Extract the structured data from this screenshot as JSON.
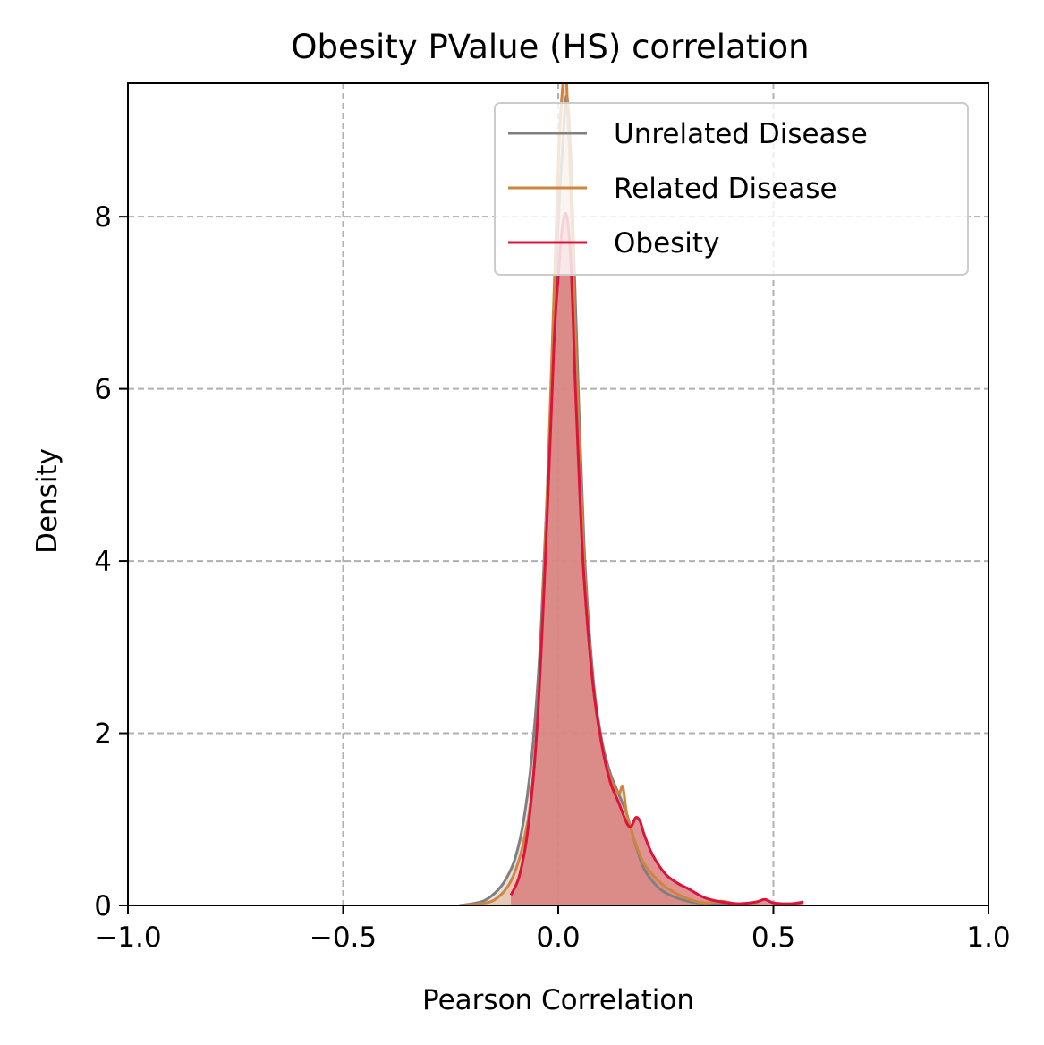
{
  "chart_data": {
    "type": "area",
    "title": "Obesity PValue (HS) correlation",
    "xlabel": "Pearson Correlation",
    "ylabel": "Density",
    "xlim": [
      -1.0,
      1.0
    ],
    "ylim": [
      0,
      9.55
    ],
    "xticks": [
      -1.0,
      -0.5,
      0.0,
      0.5,
      1.0
    ],
    "xtick_labels": [
      "−1.0",
      "−0.5",
      "0.0",
      "0.5",
      "1.0"
    ],
    "yticks": [
      0,
      2,
      4,
      6,
      8
    ],
    "ytick_labels": [
      "0",
      "2",
      "4",
      "6",
      "8"
    ],
    "grid": true,
    "legend_position": "top-right",
    "series": [
      {
        "name": "Unrelated Disease",
        "color": "#808080",
        "fill_color": "#c8c8c8",
        "x": [
          -0.23,
          -0.2,
          -0.17,
          -0.14,
          -0.12,
          -0.1,
          -0.08,
          -0.06,
          -0.04,
          -0.02,
          0.0,
          0.01,
          0.02,
          0.03,
          0.04,
          0.06,
          0.08,
          0.1,
          0.12,
          0.14,
          0.16,
          0.18,
          0.2,
          0.23,
          0.26,
          0.3,
          0.34,
          0.38,
          0.44
        ],
        "y": [
          0.0,
          0.02,
          0.06,
          0.18,
          0.32,
          0.55,
          1.0,
          1.8,
          3.2,
          5.5,
          7.9,
          8.8,
          9.4,
          8.6,
          7.0,
          4.2,
          2.7,
          1.95,
          1.55,
          1.3,
          1.05,
          0.7,
          0.42,
          0.22,
          0.12,
          0.05,
          0.02,
          0.01,
          0.0
        ]
      },
      {
        "name": "Related Disease",
        "color": "#cd853f",
        "fill_color": "#e9b98e",
        "x": [
          -0.22,
          -0.18,
          -0.15,
          -0.12,
          -0.1,
          -0.08,
          -0.06,
          -0.04,
          -0.02,
          0.0,
          0.01,
          0.015,
          0.02,
          0.03,
          0.04,
          0.06,
          0.08,
          0.1,
          0.12,
          0.14,
          0.15,
          0.16,
          0.18,
          0.2,
          0.23,
          0.26,
          0.3,
          0.34,
          0.38,
          0.42,
          0.47
        ],
        "y": [
          0.0,
          0.02,
          0.06,
          0.2,
          0.4,
          0.75,
          1.4,
          2.9,
          5.6,
          8.6,
          9.5,
          9.7,
          9.5,
          8.2,
          6.6,
          4.0,
          2.6,
          1.9,
          1.5,
          1.3,
          1.38,
          1.05,
          0.72,
          0.48,
          0.3,
          0.18,
          0.08,
          0.03,
          0.05,
          0.01,
          0.0
        ]
      },
      {
        "name": "Obesity",
        "color": "#dc143c",
        "fill_color": "#d98080",
        "x": [
          -0.11,
          -0.09,
          -0.07,
          -0.05,
          -0.03,
          -0.01,
          0.0,
          0.01,
          0.02,
          0.03,
          0.04,
          0.05,
          0.06,
          0.08,
          0.1,
          0.12,
          0.14,
          0.16,
          0.17,
          0.18,
          0.19,
          0.2,
          0.22,
          0.25,
          0.28,
          0.3,
          0.34,
          0.38,
          0.42,
          0.46,
          0.48,
          0.5,
          0.54,
          0.57
        ],
        "y": [
          0.12,
          0.35,
          0.9,
          2.0,
          4.0,
          6.5,
          7.3,
          7.9,
          8.0,
          7.4,
          6.0,
          4.8,
          3.8,
          2.6,
          1.9,
          1.45,
          1.2,
          0.95,
          0.92,
          1.02,
          0.98,
          0.82,
          0.58,
          0.36,
          0.25,
          0.2,
          0.09,
          0.04,
          0.02,
          0.04,
          0.07,
          0.03,
          0.02,
          0.04
        ]
      }
    ]
  }
}
